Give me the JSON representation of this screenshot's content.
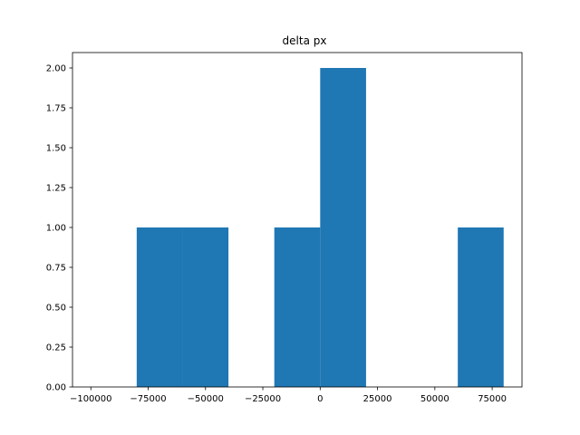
{
  "chart_data": {
    "type": "bar",
    "title": "delta px",
    "xlabel": "",
    "ylabel": "",
    "bin_edges": [
      -100000,
      -80000,
      -60000,
      -40000,
      -20000,
      0,
      20000,
      40000,
      60000,
      80000
    ],
    "values": [
      0,
      1,
      1,
      0,
      1,
      2,
      0,
      0,
      1
    ],
    "xlim": [
      -108000,
      88000
    ],
    "ylim": [
      0,
      2.0
    ],
    "xticks": [
      -100000,
      -75000,
      -50000,
      -25000,
      0,
      25000,
      50000,
      75000
    ],
    "xtick_labels": [
      "−100000",
      "−75000",
      "−50000",
      "−25000",
      "0",
      "25000",
      "50000",
      "75000"
    ],
    "yticks": [
      0,
      0.25,
      0.5,
      0.75,
      1.0,
      1.25,
      1.5,
      1.75,
      2.0
    ],
    "ytick_labels": [
      "0.00",
      "0.25",
      "0.50",
      "0.75",
      "1.00",
      "1.25",
      "1.50",
      "1.75",
      "2.00"
    ],
    "bar_color": "#1f77b4",
    "grid": false,
    "legend": "none"
  }
}
